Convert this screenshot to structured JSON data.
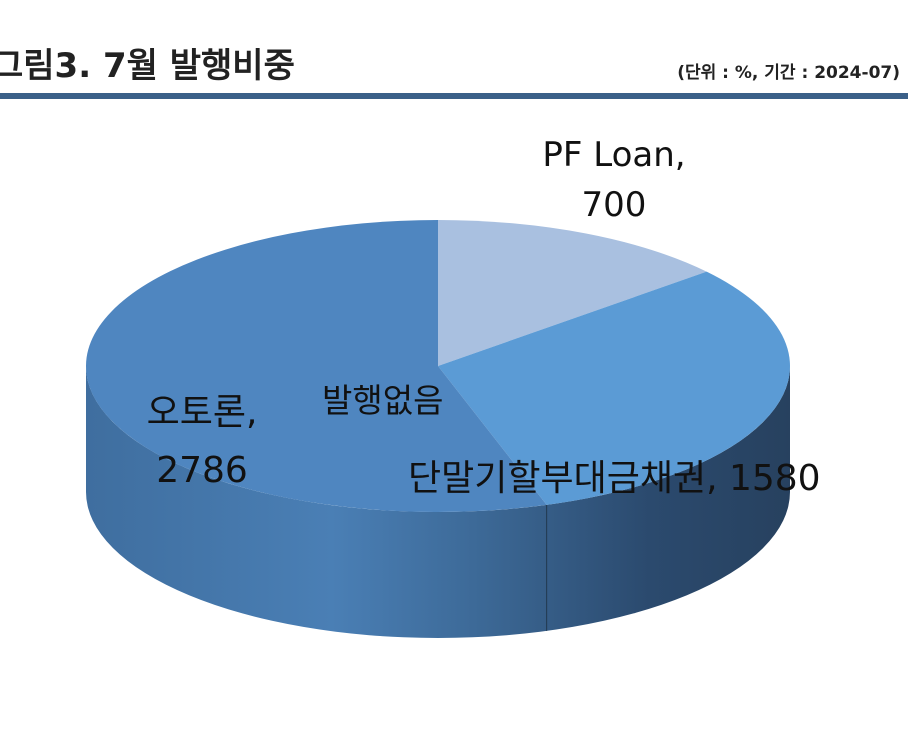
{
  "header": {
    "title": "그림3. 7월 발행비중",
    "unit_note": "(단위 : %, 기간 : 2024-07)",
    "rule_color": "#3b6088"
  },
  "chart_data": {
    "type": "pie",
    "title": "그림3. 7월 발행비중",
    "slices": [
      {
        "label": "PF Loan",
        "value": 700,
        "color": "#a9c0e0",
        "label_text": [
          "PF Loan,",
          "700"
        ]
      },
      {
        "label": "단말기할부대금채권",
        "value": 1580,
        "color": "#5b9bd5",
        "label_text": [
          "단말기할부대금채권, 1580"
        ]
      },
      {
        "label": "오토론",
        "value": 2786,
        "color": "#4f86c0",
        "label_text": [
          "오토론,",
          "2786"
        ]
      }
    ],
    "annotations": [
      "발행없음"
    ],
    "legend": "none",
    "style": "3d-pie"
  }
}
